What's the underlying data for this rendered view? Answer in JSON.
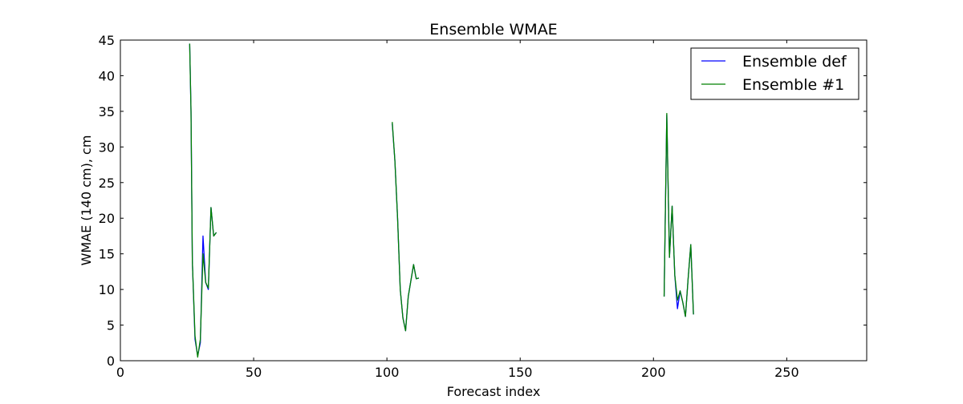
{
  "chart_data": {
    "type": "line",
    "title": "Ensemble WMAE",
    "xlabel": "Forecast index",
    "ylabel": "WMAE (140 cm), cm",
    "xlim": [
      0,
      280
    ],
    "ylim": [
      0,
      45
    ],
    "xticks": [
      0,
      50,
      100,
      150,
      200,
      250
    ],
    "yticks": [
      0,
      5,
      10,
      15,
      20,
      25,
      30,
      35,
      40,
      45
    ],
    "grid": false,
    "legend_position": "top-right",
    "series": [
      {
        "name": "Ensemble def",
        "color": "#0000ff",
        "segments": [
          [
            [
              26,
              44.5
            ],
            [
              26.5,
              35
            ],
            [
              27,
              14
            ],
            [
              28,
              3
            ],
            [
              29,
              0.7
            ],
            [
              30,
              2.5
            ],
            [
              31,
              17.5
            ],
            [
              32,
              11
            ],
            [
              33,
              10
            ],
            [
              34,
              21.5
            ],
            [
              35,
              17.5
            ],
            [
              36,
              18
            ]
          ],
          [
            [
              102,
              33.3
            ],
            [
              103,
              28
            ],
            [
              104,
              20
            ],
            [
              105,
              10
            ],
            [
              106,
              6
            ],
            [
              107,
              4.2
            ],
            [
              108,
              9
            ],
            [
              110,
              13.5
            ],
            [
              111,
              11.5
            ],
            [
              112,
              11.6
            ]
          ],
          [
            [
              204,
              9
            ],
            [
              205,
              34.5
            ],
            [
              206,
              14.5
            ],
            [
              207,
              21.7
            ],
            [
              208,
              12
            ],
            [
              209,
              7.3
            ],
            [
              210,
              9.8
            ],
            [
              211,
              8.2
            ],
            [
              212,
              6.2
            ],
            [
              213,
              11.5
            ],
            [
              214,
              16.3
            ],
            [
              215,
              6.5
            ]
          ]
        ]
      },
      {
        "name": "Ensemble #1",
        "color": "#008000",
        "segments": [
          [
            [
              26,
              44.5
            ],
            [
              26.5,
              35
            ],
            [
              27,
              14
            ],
            [
              28,
              3.5
            ],
            [
              29,
              0.5
            ],
            [
              30,
              3
            ],
            [
              31,
              15
            ],
            [
              32,
              11
            ],
            [
              33,
              10.2
            ],
            [
              34,
              21.5
            ],
            [
              35,
              17.5
            ],
            [
              36,
              18
            ]
          ],
          [
            [
              102,
              33.5
            ],
            [
              103,
              28
            ],
            [
              104,
              20
            ],
            [
              105,
              10
            ],
            [
              106,
              6
            ],
            [
              107,
              4.2
            ],
            [
              108,
              9
            ],
            [
              110,
              13.5
            ],
            [
              111,
              11.5
            ],
            [
              112,
              11.6
            ]
          ],
          [
            [
              204,
              9
            ],
            [
              205,
              34.7
            ],
            [
              206,
              14.5
            ],
            [
              207,
              21.7
            ],
            [
              208,
              12
            ],
            [
              209,
              8.5
            ],
            [
              210,
              9.8
            ],
            [
              211,
              8.2
            ],
            [
              212,
              6.2
            ],
            [
              213,
              11.5
            ],
            [
              214,
              16.3
            ],
            [
              215,
              6.5
            ]
          ]
        ]
      }
    ]
  }
}
